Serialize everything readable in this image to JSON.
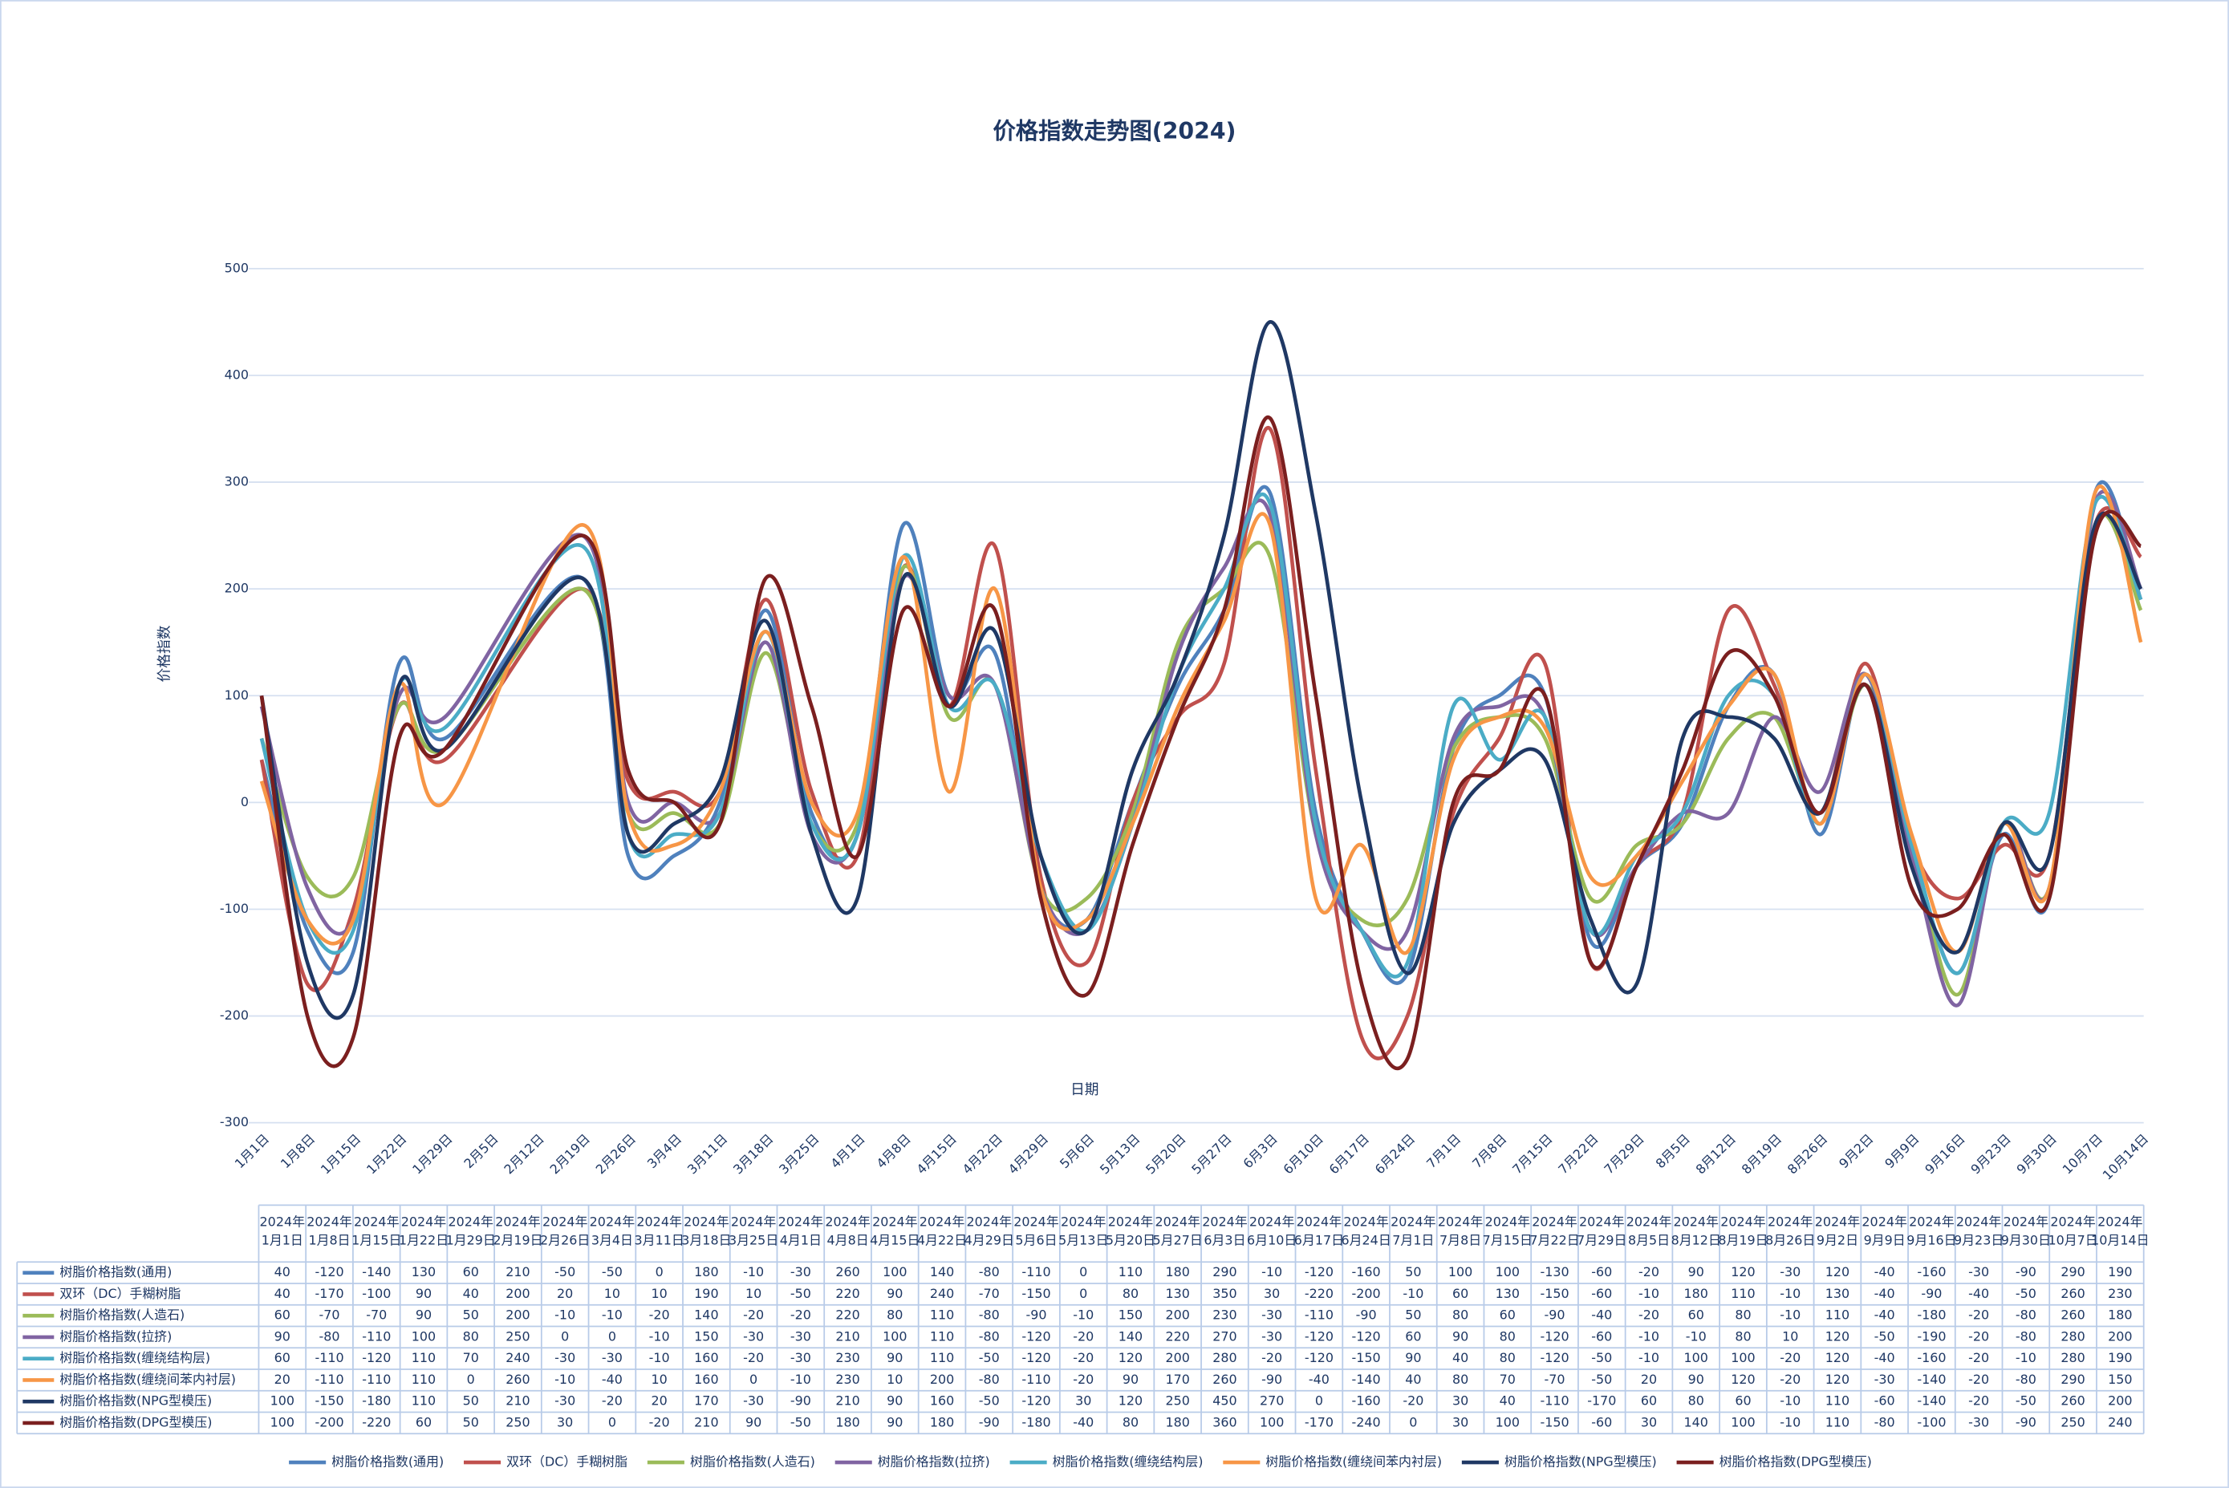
{
  "chart_data": {
    "type": "line",
    "title": "价格指数走势图(2024)",
    "y_axis_label": "价格指数",
    "x_axis_label": "日期",
    "x_axis_labels": [
      "1月1日",
      "1月8日",
      "1月15日",
      "1月22日",
      "1月29日",
      "2月5日",
      "2月12日",
      "2月19日",
      "2月26日",
      "3月4日",
      "3月11日",
      "3月18日",
      "3月25日",
      "4月1日",
      "4月8日",
      "4月15日",
      "4月22日",
      "4月29日",
      "5月6日",
      "5月13日",
      "5月20日",
      "5月27日",
      "6月3日",
      "6月10日",
      "6月17日",
      "6月24日",
      "7月1日",
      "7月8日",
      "7月15日",
      "7月22日",
      "7月29日",
      "8月5日",
      "8月12日",
      "8月19日",
      "8月26日",
      "9月2日",
      "9月9日",
      "9月16日",
      "9月23日",
      "9月30日",
      "10月7日",
      "10月14日"
    ],
    "categories": [
      "2024年1月1日",
      "2024年1月8日",
      "2024年1月15日",
      "2024年1月22日",
      "2024年1月29日",
      "2024年2月19日",
      "2024年2月26日",
      "2024年3月4日",
      "2024年3月11日",
      "2024年3月18日",
      "2024年3月25日",
      "2024年4月1日",
      "2024年4月8日",
      "2024年4月15日",
      "2024年4月22日",
      "2024年4月29日",
      "2024年5月6日",
      "2024年5月13日",
      "2024年5月20日",
      "2024年5月27日",
      "2024年6月3日",
      "2024年6月10日",
      "2024年6月17日",
      "2024年6月24日",
      "2024年7月1日",
      "2024年7月8日",
      "2024年7月15日",
      "2024年7月22日",
      "2024年7月29日",
      "2024年8月5日",
      "2024年8月12日",
      "2024年8月19日",
      "2024年8月26日",
      "2024年9月2日",
      "2024年9月9日",
      "2024年9月16日",
      "2024年9月23日",
      "2024年9月30日",
      "2024年10月7日",
      "2024年10月14日"
    ],
    "ylim": [
      -300,
      500
    ],
    "yticks": [
      -300,
      -200,
      -100,
      0,
      100,
      200,
      300,
      400,
      500
    ],
    "grid": true,
    "legend": "bottom",
    "series": [
      {
        "name": "树脂价格指数(通用)",
        "color": "#4f81bd",
        "values": [
          40,
          -120,
          -140,
          130,
          60,
          210,
          -50,
          -50,
          0,
          180,
          -10,
          -30,
          260,
          100,
          140,
          -80,
          -110,
          0,
          110,
          180,
          290,
          -10,
          -120,
          -160,
          50,
          100,
          100,
          -130,
          -60,
          -20,
          90,
          120,
          -30,
          120,
          -40,
          -160,
          -30,
          -90,
          290,
          190
        ]
      },
      {
        "name": "双环（DC）手糊树脂",
        "color": "#c0504d",
        "values": [
          40,
          -170,
          -100,
          90,
          40,
          200,
          20,
          10,
          10,
          190,
          10,
          -50,
          220,
          90,
          240,
          -70,
          -150,
          0,
          80,
          130,
          350,
          30,
          -220,
          -200,
          -10,
          60,
          130,
          -150,
          -60,
          -10,
          180,
          110,
          -10,
          130,
          -40,
          -90,
          -40,
          -50,
          260,
          230
        ]
      },
      {
        "name": "树脂价格指数(人造石)",
        "color": "#9bbb59",
        "values": [
          60,
          -70,
          -70,
          90,
          50,
          200,
          -10,
          -10,
          -20,
          140,
          -20,
          -20,
          220,
          80,
          110,
          -80,
          -90,
          -10,
          150,
          200,
          230,
          -30,
          -110,
          -90,
          50,
          80,
          60,
          -90,
          -40,
          -20,
          60,
          80,
          -10,
          110,
          -40,
          -180,
          -20,
          -80,
          260,
          180
        ]
      },
      {
        "name": "树脂价格指数(拉挤)",
        "color": "#8064a2",
        "values": [
          90,
          -80,
          -110,
          100,
          80,
          250,
          0,
          0,
          -10,
          150,
          -30,
          -30,
          210,
          100,
          110,
          -80,
          -120,
          -20,
          140,
          220,
          270,
          -30,
          -120,
          -120,
          60,
          90,
          80,
          -120,
          -60,
          -10,
          -10,
          80,
          10,
          120,
          -50,
          -190,
          -20,
          -80,
          280,
          200
        ]
      },
      {
        "name": "树脂价格指数(缠绕结构层)",
        "color": "#4bacc6",
        "values": [
          60,
          -110,
          -120,
          110,
          70,
          240,
          -30,
          -30,
          -10,
          160,
          -20,
          -30,
          230,
          90,
          110,
          -50,
          -120,
          -20,
          120,
          200,
          280,
          -20,
          -120,
          -150,
          90,
          40,
          80,
          -120,
          -50,
          -10,
          100,
          100,
          -20,
          120,
          -40,
          -160,
          -20,
          -10,
          280,
          190
        ]
      },
      {
        "name": "树脂价格指数(缠绕间苯内衬层)",
        "color": "#f79646",
        "values": [
          20,
          -110,
          -110,
          110,
          0,
          260,
          -10,
          -40,
          10,
          160,
          0,
          -10,
          230,
          10,
          200,
          -80,
          -110,
          -20,
          90,
          170,
          260,
          -90,
          -40,
          -140,
          40,
          80,
          70,
          -70,
          -50,
          20,
          90,
          120,
          -20,
          120,
          -30,
          -140,
          -20,
          -80,
          290,
          150
        ]
      },
      {
        "name": "树脂价格指数(NPG型模压)",
        "color": "#1f3864",
        "values": [
          100,
          -150,
          -180,
          110,
          50,
          210,
          -30,
          -20,
          20,
          170,
          -30,
          -90,
          210,
          90,
          160,
          -50,
          -120,
          30,
          120,
          250,
          450,
          270,
          0,
          -160,
          -20,
          30,
          40,
          -110,
          -170,
          60,
          80,
          60,
          -10,
          110,
          -60,
          -140,
          -20,
          -50,
          260,
          200
        ]
      },
      {
        "name": "树脂价格指数(DPG型模压)",
        "color": "#7b1f1f",
        "values": [
          100,
          -200,
          -220,
          60,
          50,
          250,
          30,
          0,
          -20,
          210,
          90,
          -50,
          180,
          90,
          180,
          -90,
          -180,
          -40,
          80,
          180,
          360,
          100,
          -170,
          -240,
          0,
          30,
          100,
          -150,
          -60,
          30,
          140,
          100,
          -10,
          110,
          -80,
          -100,
          -30,
          -90,
          250,
          240
        ]
      }
    ]
  }
}
